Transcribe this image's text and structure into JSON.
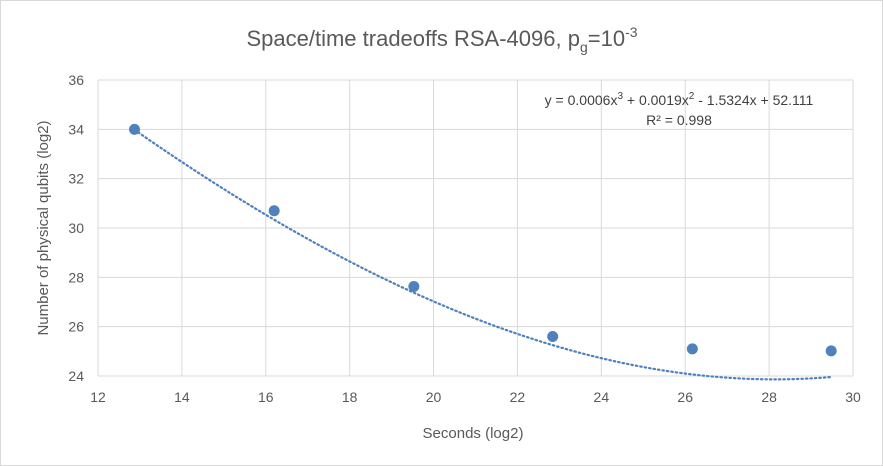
{
  "chart_data": {
    "type": "scatter",
    "title": "Space/time tradeoffs RSA-4096, p",
    "title_subscript": "g",
    "title_suffix": "=10",
    "title_superscript": "-3",
    "xlabel": "Seconds (log2)",
    "ylabel": "Number of physical qubits (log2)",
    "xlim": [
      12,
      30
    ],
    "ylim": [
      24,
      36
    ],
    "xticks": [
      12,
      14,
      16,
      18,
      20,
      22,
      24,
      26,
      28,
      30
    ],
    "yticks": [
      24,
      26,
      28,
      30,
      32,
      34,
      36
    ],
    "grid": true,
    "series": [
      {
        "x": [
          12.87,
          16.2,
          19.53,
          22.84,
          26.17,
          29.48
        ],
        "y": [
          34.0,
          30.7,
          27.63,
          25.6,
          25.1,
          25.02
        ],
        "color": "#4f81bd"
      }
    ],
    "trendline": {
      "type": "polynomial-3",
      "color": "#4f81bd",
      "style": "dotted",
      "coefficients": [
        0.0006,
        0.0019,
        -1.5324,
        52.111
      ]
    },
    "annotations": {
      "equation": {
        "y_eq": "y = 0.0006x",
        "exp1": "3",
        "term2": " + 0.0019x",
        "exp2": "2",
        "term3": " - 1.5324x + 52.111"
      },
      "r2": "R² = 0.998"
    }
  }
}
